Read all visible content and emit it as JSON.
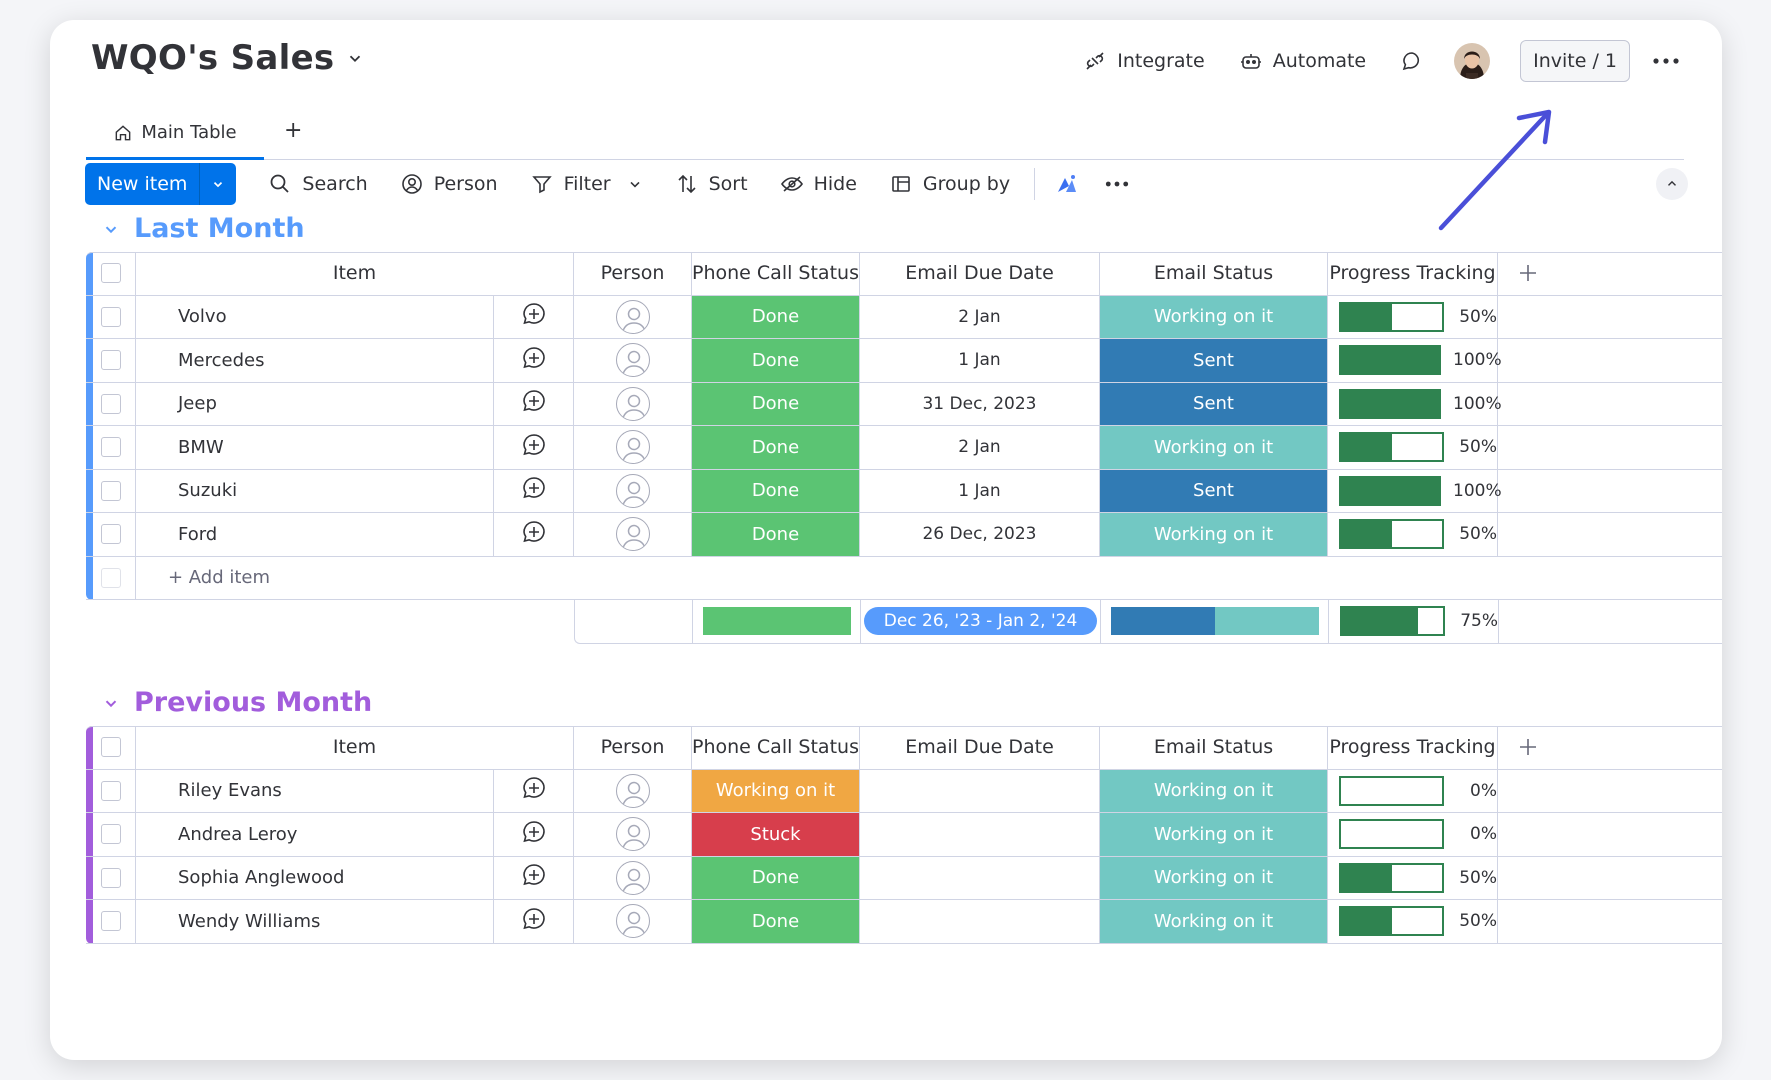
{
  "board": {
    "title": "WQO's Sales"
  },
  "header": {
    "integrate": "Integrate",
    "automate": "Automate",
    "invite": "Invite / 1"
  },
  "tabs": {
    "main": "Main Table",
    "add": "+"
  },
  "toolbar": {
    "new_item": "New item",
    "search": "Search",
    "person": "Person",
    "filter": "Filter",
    "sort": "Sort",
    "hide": "Hide",
    "group_by": "Group by"
  },
  "columns": {
    "item": "Item",
    "person": "Person",
    "phone": "Phone Call Status",
    "email_date": "Email Due Date",
    "email_status": "Email Status",
    "progress": "Progress Tracking"
  },
  "colors": {
    "done": "#5bc473",
    "working_email": "#72c8c3",
    "sent": "#317bb4",
    "working_phone": "#f0a743",
    "stuck": "#d73e4c",
    "group1": "#579bfc",
    "group2": "#a25ddc",
    "progress": "#2f8350"
  },
  "groups": [
    {
      "name": "Last Month",
      "add_item": "+ Add item",
      "rows": [
        {
          "item": "Volvo",
          "phone": "Done",
          "date": "2 Jan",
          "email": "Working on it",
          "progress": 50,
          "progress_label": "50%"
        },
        {
          "item": "Mercedes",
          "phone": "Done",
          "date": "1 Jan",
          "email": "Sent",
          "progress": 100,
          "progress_label": "100%"
        },
        {
          "item": "Jeep",
          "phone": "Done",
          "date": "31 Dec, 2023",
          "email": "Sent",
          "progress": 100,
          "progress_label": "100%"
        },
        {
          "item": "BMW",
          "phone": "Done",
          "date": "2 Jan",
          "email": "Working on it",
          "progress": 50,
          "progress_label": "50%"
        },
        {
          "item": "Suzuki",
          "phone": "Done",
          "date": "1 Jan",
          "email": "Sent",
          "progress": 100,
          "progress_label": "100%"
        },
        {
          "item": "Ford",
          "phone": "Done",
          "date": "26 Dec, 2023",
          "email": "Working on it",
          "progress": 50,
          "progress_label": "50%"
        }
      ],
      "summary": {
        "date_range": "Dec 26, '23 - Jan 2, '24",
        "email_sent_fraction": 0.5,
        "progress": 75,
        "progress_label": "75%"
      }
    },
    {
      "name": "Previous Month",
      "rows": [
        {
          "item": "Riley Evans",
          "phone": "Working on it",
          "date": "",
          "email": "Working on it",
          "progress": 0,
          "progress_label": "0%"
        },
        {
          "item": "Andrea Leroy",
          "phone": "Stuck",
          "date": "",
          "email": "Working on it",
          "progress": 0,
          "progress_label": "0%"
        },
        {
          "item": "Sophia Anglewood",
          "phone": "Done",
          "date": "",
          "email": "Working on it",
          "progress": 50,
          "progress_label": "50%"
        },
        {
          "item": "Wendy Williams",
          "phone": "Done",
          "date": "",
          "email": "Working on it",
          "progress": 50,
          "progress_label": "50%"
        }
      ]
    }
  ]
}
